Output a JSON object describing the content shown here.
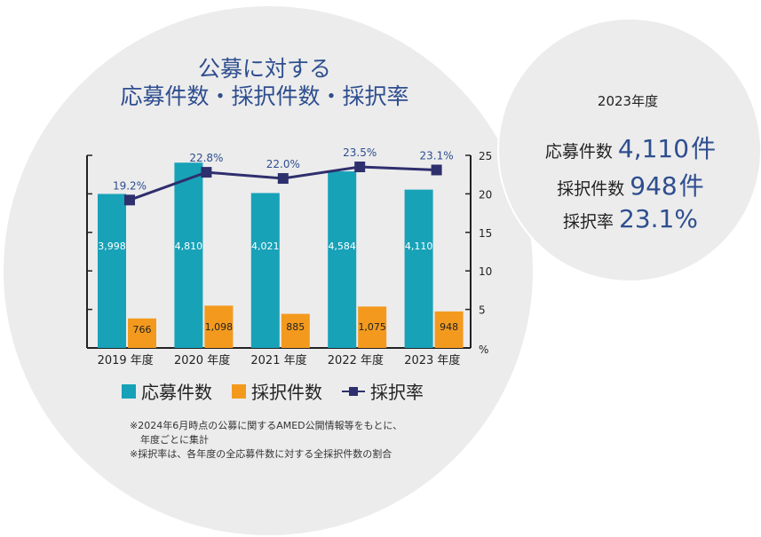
{
  "title": {
    "line1": "公募に対する",
    "line2": "応募件数・採択件数・採択率"
  },
  "chart_data": {
    "type": "bar",
    "categories": [
      "2019",
      "2020",
      "2021",
      "2022",
      "2023"
    ],
    "category_suffix": "年度",
    "series": [
      {
        "name": "応募件数",
        "kind": "bar",
        "axis": "left",
        "color": "#17a2b8",
        "values": [
          3998,
          4810,
          4021,
          4584,
          4110
        ],
        "labels": [
          "3,998",
          "4,810",
          "4,021",
          "4,584",
          "4,110"
        ]
      },
      {
        "name": "採択件数",
        "kind": "bar",
        "axis": "left",
        "color": "#f39a1e",
        "values": [
          766,
          1098,
          885,
          1075,
          948
        ],
        "labels": [
          "766",
          "1,098",
          "885",
          "1,075",
          "948"
        ]
      },
      {
        "name": "採択率",
        "kind": "line",
        "axis": "right",
        "color": "#2e2f6d",
        "values": [
          19.2,
          22.8,
          22.0,
          23.5,
          23.1
        ],
        "labels": [
          "19.2%",
          "22.8%",
          "22.0%",
          "23.5%",
          "23.1%"
        ]
      }
    ],
    "left_axis": {
      "range": [
        0,
        5000
      ],
      "tick_labels_shown": false
    },
    "right_axis": {
      "range": [
        0,
        25
      ],
      "ticks": [
        5,
        10,
        15,
        20,
        25
      ],
      "unit_label": "%"
    },
    "legend_position": "bottom",
    "grid": false
  },
  "legend": [
    "応募件数",
    "採択件数",
    "採択率"
  ],
  "notes": [
    "※2024年6月時点の公募に関するAMED公開情報等をもとに、",
    "年度ごとに集計",
    "※採択率は、各年度の全応募件数に対する全採択件数の割合"
  ],
  "summary": {
    "year": "2023年度",
    "rows": [
      {
        "label": "応募件数",
        "value": "4,110",
        "unit": "件"
      },
      {
        "label": "採択件数",
        "value": "948",
        "unit": "件"
      },
      {
        "label": "採択率",
        "value": "23.1%",
        "unit": ""
      }
    ]
  },
  "colors": {
    "accent_text": "#2e4e8f",
    "bar_applications": "#17a2b8",
    "bar_adopted": "#f39a1e",
    "line_rate": "#2e2f6d",
    "background_circle": "#ececec"
  }
}
